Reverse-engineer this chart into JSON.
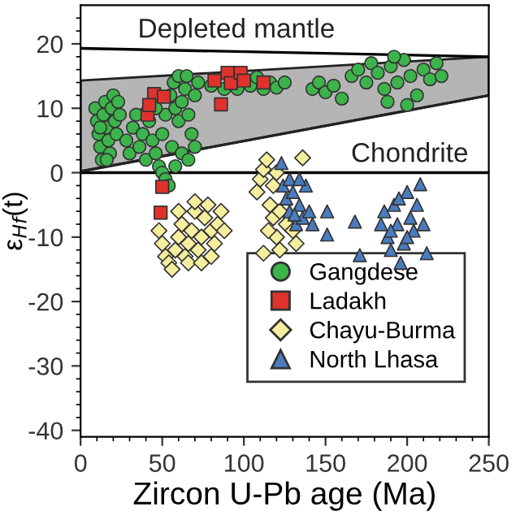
{
  "chart_data": {
    "type": "scatter",
    "xlabel": "Zircon U-Pb age (Ma)",
    "ylabel": "ε$_{Hf}$(t)",
    "xlim": [
      0,
      250
    ],
    "ylim": [
      -41,
      26
    ],
    "xticks": [
      0,
      {
        "value": 10,
        "label": null
      },
      {
        "value": 20,
        "label": null
      },
      {
        "value": 30,
        "label": null
      },
      {
        "value": 40,
        "label": null
      },
      50,
      {
        "value": 60,
        "label": null
      },
      {
        "value": 70,
        "label": null
      },
      {
        "value": 80,
        "label": null
      },
      {
        "value": 90,
        "label": null
      },
      100,
      {
        "value": 110,
        "label": null
      },
      {
        "value": 120,
        "label": null
      },
      {
        "value": 130,
        "label": null
      },
      {
        "value": 140,
        "label": null
      },
      150,
      {
        "value": 160,
        "label": null
      },
      {
        "value": 170,
        "label": null
      },
      {
        "value": 180,
        "label": null
      },
      {
        "value": 190,
        "label": null
      },
      200,
      {
        "value": 210,
        "label": null
      },
      {
        "value": 220,
        "label": null
      },
      {
        "value": 230,
        "label": null
      },
      {
        "value": 240,
        "label": null
      },
      250
    ],
    "yticks": [
      -40,
      {
        "value": -38,
        "label": null
      },
      {
        "value": -36,
        "label": null
      },
      {
        "value": -34,
        "label": null
      },
      {
        "value": -32,
        "label": null
      },
      -30,
      {
        "value": -28,
        "label": null
      },
      {
        "value": -26,
        "label": null
      },
      {
        "value": -24,
        "label": null
      },
      {
        "value": -22,
        "label": null
      },
      -20,
      {
        "value": -18,
        "label": null
      },
      {
        "value": -16,
        "label": null
      },
      {
        "value": -14,
        "label": null
      },
      {
        "value": -12,
        "label": null
      },
      -10,
      {
        "value": -8,
        "label": null
      },
      {
        "value": -6,
        "label": null
      },
      {
        "value": -4,
        "label": null
      },
      {
        "value": -2,
        "label": null
      },
      0,
      {
        "value": 2,
        "label": null
      },
      {
        "value": 4,
        "label": null
      },
      {
        "value": 6,
        "label": null
      },
      {
        "value": 8,
        "label": null
      },
      10,
      {
        "value": 12,
        "label": null
      },
      {
        "value": 14,
        "label": null
      },
      {
        "value": 16,
        "label": null
      },
      {
        "value": 18,
        "label": null
      },
      20,
      {
        "value": 22,
        "label": null
      },
      {
        "value": 24,
        "label": null
      }
    ],
    "grid": false,
    "legend": "bottom right",
    "ref_lines": [
      {
        "axis": "y",
        "value": 0,
        "label": "Chondrite",
        "color": "#000000"
      }
    ],
    "series": [
      {
        "type": "line",
        "color": "#222222",
        "x": [
          0,
          250
        ],
        "lower": [
          0.2,
          12
        ],
        "upper": [
          14.3,
          18
        ],
        "values": [
          0.2,
          12
        ]
      },
      {
        "type": "line",
        "name": "Depleted mantle",
        "color": "#000000",
        "x": [
          0,
          250
        ],
        "values": [
          19.3,
          18
        ]
      },
      {
        "name": "Gangdese",
        "color": "#3cb44b",
        "marker": "circle",
        "x": [
          9,
          10,
          11,
          12,
          13,
          14,
          15,
          16,
          17,
          18,
          19,
          20,
          21,
          22,
          23,
          24,
          12,
          16,
          28,
          30,
          32,
          34,
          36,
          38,
          40,
          42,
          44,
          46,
          48,
          50,
          52,
          54,
          50,
          52,
          55,
          57,
          58,
          60,
          62,
          64,
          66,
          68,
          70,
          72,
          60,
          65,
          56,
          62,
          58,
          66,
          70,
          46,
          80,
          88,
          96,
          104,
          108,
          112,
          116,
          120,
          125,
          142,
          146,
          150,
          155,
          160,
          166,
          170,
          175,
          178,
          182,
          186,
          190,
          194,
          198,
          202,
          206,
          210,
          214,
          218,
          221,
          200,
          192,
          188
        ],
        "values": [
          10,
          8,
          6,
          4,
          2,
          9,
          11,
          7,
          5,
          3,
          10,
          12,
          8,
          6,
          11,
          9,
          7,
          2,
          5,
          3,
          7,
          9,
          4,
          6,
          2,
          8,
          5,
          3,
          1,
          0,
          -1,
          -2,
          6,
          9,
          12,
          14,
          10,
          8,
          11,
          13,
          9,
          6,
          12,
          14,
          15,
          15,
          4,
          3,
          1,
          2,
          4,
          10,
          13.5,
          13,
          13,
          13.5,
          14.8,
          13,
          14,
          13.2,
          14,
          13,
          14,
          12.5,
          13.5,
          11.5,
          15,
          16,
          14,
          17,
          15.5,
          13,
          16.5,
          14,
          17.5,
          15,
          12,
          16,
          14.5,
          17,
          15,
          10.5,
          18,
          11
        ]
      },
      {
        "name": "Ladakh",
        "color": "#e0322d",
        "marker": "square",
        "x": [
          41,
          45,
          51,
          42,
          50,
          49,
          82,
          86,
          90,
          92,
          98,
          100,
          112
        ],
        "values": [
          9,
          12.2,
          11.8,
          10.5,
          -2.2,
          -6.2,
          14.3,
          10.6,
          15.5,
          13.9,
          15.5,
          14.3,
          14
        ]
      },
      {
        "name": "Chayu-Burma",
        "color": "#f5ee9e",
        "marker": "diamond",
        "x": [
          48,
          50,
          52,
          54,
          56,
          58,
          60,
          62,
          64,
          66,
          68,
          70,
          72,
          74,
          76,
          78,
          80,
          82,
          84,
          86,
          88,
          66,
          74,
          80,
          60,
          70,
          108,
          110,
          112,
          114,
          116,
          118,
          120,
          122,
          115,
          118,
          120,
          126,
          130,
          132,
          122,
          136,
          112
        ],
        "values": [
          -9,
          -11,
          -13,
          -14,
          -15,
          -12,
          -10,
          -8,
          -13,
          -11,
          -9,
          -6,
          -12,
          -10,
          -7,
          -5,
          -9,
          -11,
          -8,
          -6,
          -9,
          -14,
          -14,
          -13,
          -6,
          -4.5,
          -3,
          -1,
          0.5,
          2,
          -5,
          -7,
          -10,
          -12,
          -9,
          -2,
          0,
          -8,
          -9,
          -11,
          -6,
          2.3,
          -12.5
        ]
      },
      {
        "name": "North Lhasa",
        "color": "#4a7cc0",
        "marker": "triangle",
        "x": [
          123,
          124,
          126,
          128,
          130,
          132,
          134,
          136,
          138,
          140,
          142,
          128,
          134,
          131,
          151,
          151,
          168,
          171,
          184,
          186,
          188,
          190,
          192,
          194,
          196,
          198,
          200,
          202,
          204,
          206,
          208,
          210,
          212,
          195,
          190,
          200
        ],
        "values": [
          1.5,
          -2,
          -4,
          -6,
          -3,
          -8,
          -5,
          -7,
          -2,
          -6,
          -8,
          -1,
          -1,
          -6.5,
          -6,
          -9.6,
          -7.6,
          -12.8,
          -8,
          -6,
          -10,
          -12,
          -5,
          -8,
          -14,
          -11,
          -3,
          -7,
          -9,
          -5,
          -1.8,
          -8,
          -12.5,
          -4,
          -9,
          -10
        ]
      }
    ]
  }
}
